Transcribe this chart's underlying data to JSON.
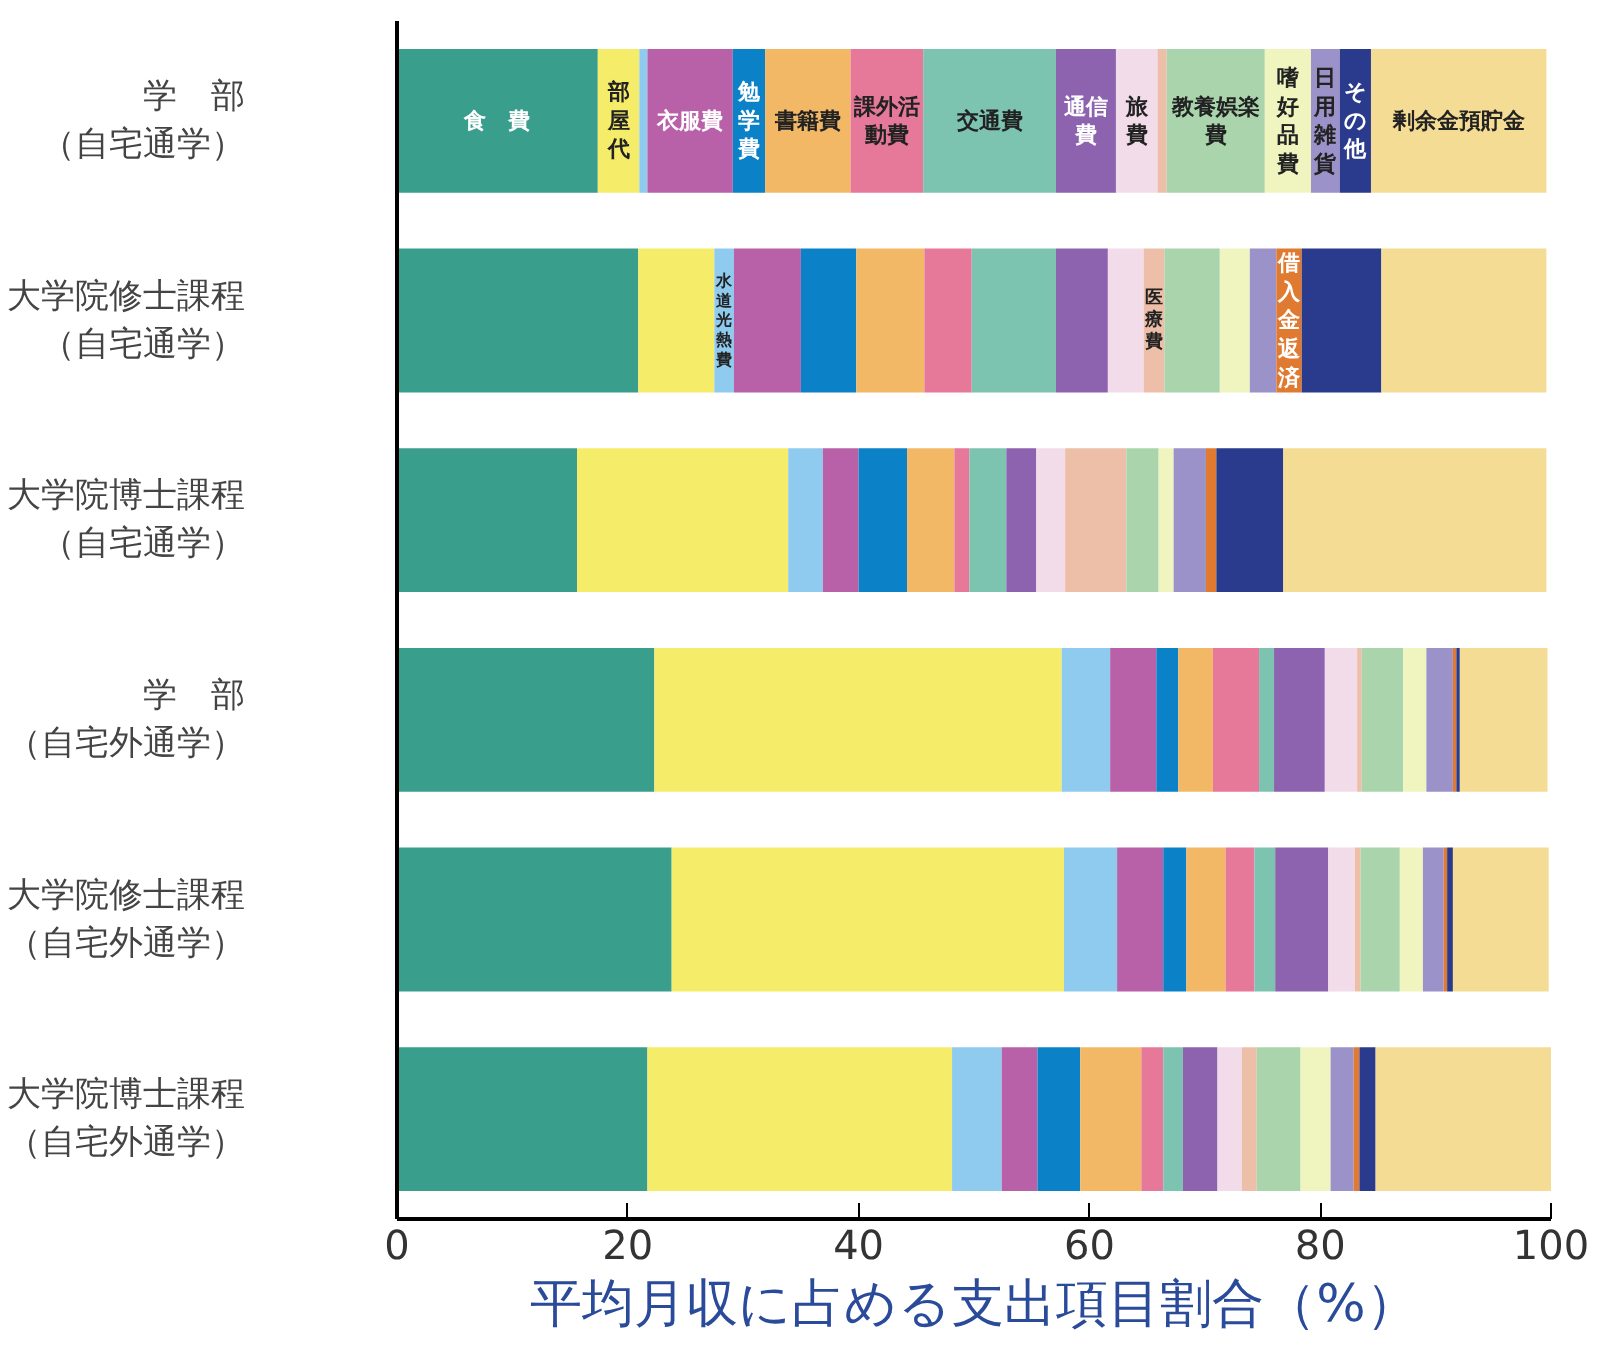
{
  "chart_data": {
    "type": "bar",
    "orientation": "horizontal",
    "stacked": true,
    "categories": [
      "学　部（自宅通学）",
      "大学院修士課程（自宅通学）",
      "大学院博士課程（自宅通学）",
      "学　部（自宅外通学）",
      "大学院修士課程（自宅外通学）",
      "大学院博士課程（自宅外通学）"
    ],
    "xlabel": "平均月収に占める支出項目割合（%）",
    "xlim": [
      0,
      100
    ],
    "xticks": [
      0,
      20,
      40,
      60,
      80,
      100
    ],
    "grid": false,
    "series": [
      {
        "name": "食　費",
        "color": "#3a9e8c",
        "values": [
          17.4,
          20.9,
          15.6,
          22.3,
          23.8,
          21.7
        ]
      },
      {
        "name": "部屋代",
        "color": "#f5ec6a",
        "values": [
          3.6,
          6.6,
          18.3,
          35.3,
          34.0,
          26.4
        ]
      },
      {
        "name": "水道光熱費",
        "color": "#8ecbef",
        "values": [
          0.7,
          1.7,
          3.0,
          4.2,
          4.6,
          4.3
        ]
      },
      {
        "name": "衣服費",
        "color": "#b860a8",
        "values": [
          7.4,
          5.8,
          3.1,
          4.0,
          4.0,
          3.1
        ]
      },
      {
        "name": "勉学費",
        "color": "#0b82c8",
        "values": [
          2.8,
          4.8,
          4.2,
          1.9,
          2.0,
          3.7
        ]
      },
      {
        "name": "書籍費",
        "color": "#f2b866",
        "values": [
          7.4,
          5.9,
          4.1,
          3.0,
          3.4,
          5.3
        ]
      },
      {
        "name": "課外活動費",
        "color": "#e6789a",
        "values": [
          6.3,
          4.1,
          1.3,
          4.0,
          2.5,
          1.9
        ]
      },
      {
        "name": "交通費",
        "color": "#7cc4b0",
        "values": [
          11.5,
          7.3,
          3.2,
          1.3,
          1.8,
          1.7
        ]
      },
      {
        "name": "通信費",
        "color": "#8d62ae",
        "values": [
          5.2,
          4.5,
          2.6,
          4.4,
          4.6,
          3.0
        ]
      },
      {
        "name": "旅費",
        "color": "#f2dcea",
        "values": [
          3.6,
          3.1,
          2.5,
          2.8,
          2.3,
          2.1
        ]
      },
      {
        "name": "医療費",
        "color": "#edbfa8",
        "values": [
          0.8,
          1.8,
          5.3,
          0.4,
          0.5,
          1.3
        ]
      },
      {
        "name": "教養娯楽費",
        "color": "#a9d4ac",
        "values": [
          8.5,
          4.8,
          2.8,
          3.6,
          3.4,
          3.8
        ]
      },
      {
        "name": "嗜好品費",
        "color": "#f0f5c0",
        "values": [
          4.0,
          2.6,
          1.3,
          2.0,
          2.0,
          2.6
        ]
      },
      {
        "name": "日用雑貨",
        "color": "#9a92c8",
        "values": [
          2.5,
          2.3,
          2.8,
          2.3,
          1.8,
          2.0
        ]
      },
      {
        "name": "借入金返済",
        "color": "#e07a30",
        "values": [
          0,
          2.2,
          0.9,
          0.3,
          0.3,
          0.5
        ]
      },
      {
        "name": "その他",
        "color": "#2a3a8c",
        "values": [
          2.7,
          6.9,
          5.8,
          0.3,
          0.5,
          1.4
        ]
      },
      {
        "name": "剰余金預貯金",
        "color": "#f5dc94",
        "values": [
          15.2,
          14.3,
          22.8,
          7.6,
          8.3,
          15.2
        ]
      }
    ]
  }
}
